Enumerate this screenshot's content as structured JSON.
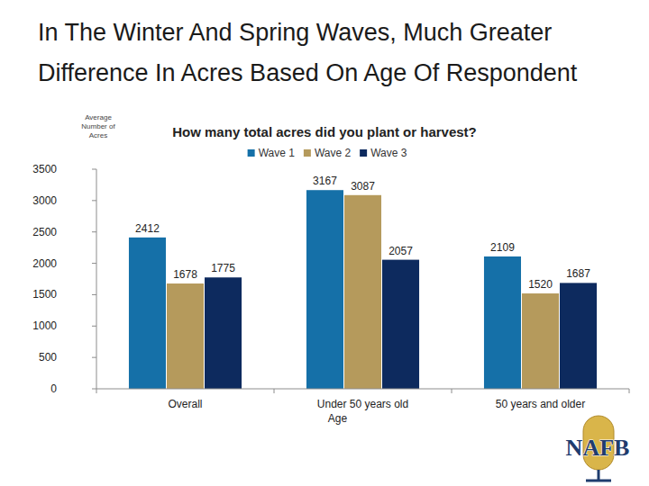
{
  "chart_data": {
    "type": "bar",
    "title": "In The Winter And Spring Waves, Much Greater Difference In Acres Based On Age Of Respondent",
    "subtitle": "How many total acres did you plant or harvest?",
    "y_label": "Average Number of Acres",
    "x_label": "Age",
    "categories": [
      "Overall",
      "Under 50 years old",
      "50 years and older"
    ],
    "series": [
      {
        "name": "Wave 1",
        "color": "#1570a8",
        "values": [
          2412,
          3167,
          2109
        ]
      },
      {
        "name": "Wave 2",
        "color": "#b59a5c",
        "values": [
          1678,
          3087,
          1520
        ]
      },
      {
        "name": "Wave 3",
        "color": "#0d2a5e",
        "values": [
          1775,
          2057,
          1687
        ]
      }
    ],
    "ylim": [
      0,
      3500
    ],
    "yticks": [
      0,
      500,
      1000,
      1500,
      2000,
      2500,
      3000,
      3500
    ],
    "grid": false,
    "legend": "top",
    "data_labels": true,
    "annotations": [
      "NAFB"
    ]
  }
}
